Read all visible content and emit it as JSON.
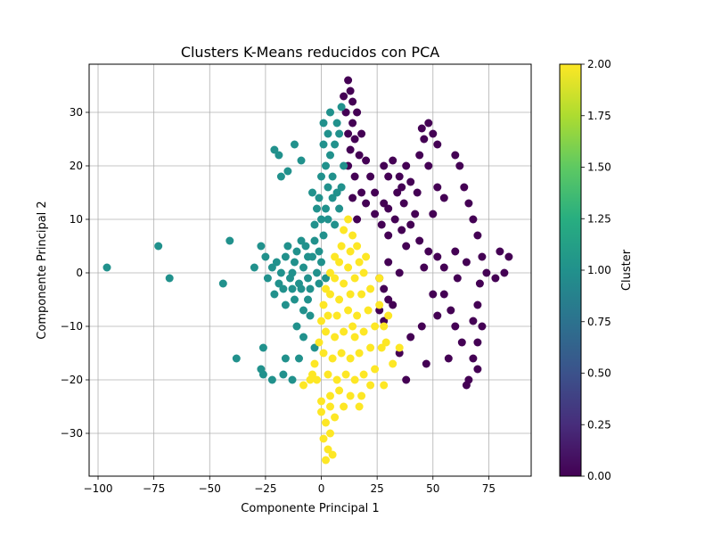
{
  "chart_data": {
    "type": "scatter",
    "title": "Clusters K-Means reducidos con PCA",
    "xlabel": "Componente Principal 1",
    "ylabel": "Componente Principal 2",
    "xlim": [
      -104,
      94
    ],
    "ylim": [
      -38,
      39
    ],
    "xticks": [
      -100,
      -75,
      -50,
      -25,
      0,
      25,
      50,
      75
    ],
    "xtick_labels": [
      "−100",
      "−75",
      "−50",
      "−25",
      "0",
      "25",
      "50",
      "75"
    ],
    "yticks": [
      -30,
      -20,
      -10,
      0,
      10,
      20,
      30
    ],
    "ytick_labels": [
      "−30",
      "−20",
      "−10",
      "0",
      "10",
      "20",
      "30"
    ],
    "grid": true,
    "colormap": "viridis",
    "colorbar": {
      "label": "Cluster",
      "range": [
        0,
        2
      ],
      "ticks": [
        0,
        0.25,
        0.5,
        0.75,
        1.0,
        1.25,
        1.5,
        1.75,
        2.0
      ],
      "tick_labels": [
        "0.00",
        "0.25",
        "0.50",
        "0.75",
        "1.00",
        "1.25",
        "1.50",
        "1.75",
        "2.00"
      ]
    },
    "series": [
      {
        "cluster": 0,
        "color": "#440154",
        "points": [
          [
            12,
            36
          ],
          [
            13,
            34
          ],
          [
            10,
            33
          ],
          [
            14,
            32
          ],
          [
            11,
            30
          ],
          [
            16,
            30
          ],
          [
            14,
            28
          ],
          [
            12,
            26
          ],
          [
            15,
            25
          ],
          [
            18,
            26
          ],
          [
            13,
            23
          ],
          [
            17,
            22
          ],
          [
            12,
            20
          ],
          [
            20,
            21
          ],
          [
            15,
            18
          ],
          [
            22,
            18
          ],
          [
            18,
            15
          ],
          [
            24,
            15
          ],
          [
            14,
            14
          ],
          [
            20,
            13
          ],
          [
            16,
            10
          ],
          [
            24,
            11
          ],
          [
            28,
            13
          ],
          [
            30,
            12
          ],
          [
            27,
            9
          ],
          [
            33,
            10
          ],
          [
            30,
            7
          ],
          [
            36,
            8
          ],
          [
            40,
            9
          ],
          [
            42,
            11
          ],
          [
            38,
            5
          ],
          [
            44,
            6
          ],
          [
            48,
            4
          ],
          [
            52,
            3
          ],
          [
            46,
            1
          ],
          [
            55,
            1
          ],
          [
            60,
            4
          ],
          [
            65,
            2
          ],
          [
            30,
            2
          ],
          [
            35,
            0
          ],
          [
            26,
            -1
          ],
          [
            28,
            -3
          ],
          [
            30,
            -5
          ],
          [
            26,
            -7
          ],
          [
            32,
            -6
          ],
          [
            28,
            -9
          ],
          [
            35,
            18
          ],
          [
            38,
            20
          ],
          [
            40,
            17
          ],
          [
            34,
            15
          ],
          [
            45,
            27
          ],
          [
            48,
            28
          ],
          [
            46,
            25
          ],
          [
            50,
            26
          ],
          [
            52,
            24
          ],
          [
            44,
            22
          ],
          [
            48,
            20
          ],
          [
            52,
            16
          ],
          [
            55,
            14
          ],
          [
            50,
            11
          ],
          [
            28,
            20
          ],
          [
            30,
            18
          ],
          [
            32,
            21
          ],
          [
            36,
            16
          ],
          [
            37,
            13
          ],
          [
            43,
            15
          ],
          [
            60,
            22
          ],
          [
            62,
            20
          ],
          [
            64,
            16
          ],
          [
            66,
            13
          ],
          [
            68,
            10
          ],
          [
            70,
            7
          ],
          [
            72,
            3
          ],
          [
            74,
            0
          ],
          [
            78,
            -1
          ],
          [
            80,
            4
          ],
          [
            82,
            0
          ],
          [
            84,
            3
          ],
          [
            71,
            -2
          ],
          [
            70,
            -6
          ],
          [
            68,
            -9
          ],
          [
            72,
            -10
          ],
          [
            70,
            -13
          ],
          [
            68,
            -16
          ],
          [
            70,
            -18
          ],
          [
            66,
            -20
          ],
          [
            65,
            -21
          ],
          [
            63,
            -13
          ],
          [
            60,
            -10
          ],
          [
            58,
            -7
          ],
          [
            55,
            -4
          ],
          [
            52,
            -8
          ],
          [
            50,
            -4
          ],
          [
            45,
            -10
          ],
          [
            40,
            -12
          ],
          [
            38,
            -20
          ],
          [
            35,
            -15
          ],
          [
            47,
            -17
          ],
          [
            57,
            -16
          ],
          [
            61,
            -1
          ]
        ]
      },
      {
        "cluster": 1,
        "color": "#21918c",
        "points": [
          [
            -96,
            1
          ],
          [
            -73,
            5
          ],
          [
            -68,
            -1
          ],
          [
            -44,
            -2
          ],
          [
            -41,
            6
          ],
          [
            -38,
            -16
          ],
          [
            -27,
            5
          ],
          [
            -27,
            -18
          ],
          [
            -26,
            -14
          ],
          [
            -22,
            -20
          ],
          [
            -30,
            1
          ],
          [
            -26,
            -19
          ],
          [
            -21,
            23
          ],
          [
            -19,
            22
          ],
          [
            -18,
            18
          ],
          [
            -15,
            19
          ],
          [
            -12,
            24
          ],
          [
            -9,
            21
          ],
          [
            -16,
            -16
          ],
          [
            -17,
            -19
          ],
          [
            -13,
            -20
          ],
          [
            -10,
            -16
          ],
          [
            -11,
            -10
          ],
          [
            -5,
            -8
          ],
          [
            -8,
            -12
          ],
          [
            -3,
            -14
          ],
          [
            -20,
            2
          ],
          [
            -18,
            0
          ],
          [
            -16,
            3
          ],
          [
            -14,
            -1
          ],
          [
            -12,
            2
          ],
          [
            -10,
            -2
          ],
          [
            -8,
            1
          ],
          [
            -6,
            -1
          ],
          [
            -4,
            3
          ],
          [
            -2,
            0
          ],
          [
            0,
            2
          ],
          [
            2,
            -1
          ],
          [
            -15,
            5
          ],
          [
            -11,
            4
          ],
          [
            -7,
            5
          ],
          [
            -3,
            6
          ],
          [
            -1,
            4
          ],
          [
            -19,
            -2
          ],
          [
            -17,
            -3
          ],
          [
            -13,
            -3
          ],
          [
            -9,
            -3
          ],
          [
            -5,
            -3
          ],
          [
            -1,
            -2
          ],
          [
            1,
            7
          ],
          [
            -3,
            9
          ],
          [
            0,
            10
          ],
          [
            2,
            12
          ],
          [
            -1,
            14
          ],
          [
            3,
            16
          ],
          [
            0,
            18
          ],
          [
            2,
            20
          ],
          [
            4,
            22
          ],
          [
            1,
            24
          ],
          [
            3,
            26
          ],
          [
            1,
            28
          ],
          [
            4,
            30
          ],
          [
            7,
            28
          ],
          [
            6,
            24
          ],
          [
            5,
            18
          ],
          [
            7,
            15
          ],
          [
            8,
            12
          ],
          [
            6,
            9
          ],
          [
            9,
            31
          ],
          [
            8,
            26
          ],
          [
            10,
            20
          ],
          [
            9,
            16
          ],
          [
            -4,
            15
          ],
          [
            -2,
            12
          ],
          [
            5,
            14
          ],
          [
            3,
            10
          ],
          [
            -6,
            3
          ],
          [
            -9,
            6
          ],
          [
            -13,
            0
          ],
          [
            -22,
            1
          ],
          [
            -24,
            -1
          ],
          [
            -21,
            -4
          ],
          [
            -16,
            -6
          ],
          [
            -12,
            -5
          ],
          [
            -25,
            3
          ],
          [
            -6,
            -5
          ],
          [
            -8,
            -7
          ]
        ]
      },
      {
        "cluster": 2,
        "color": "#fde725",
        "points": [
          [
            12,
            10
          ],
          [
            10,
            8
          ],
          [
            14,
            7
          ],
          [
            9,
            5
          ],
          [
            13,
            4
          ],
          [
            16,
            5
          ],
          [
            8,
            2
          ],
          [
            12,
            1
          ],
          [
            17,
            2
          ],
          [
            6,
            -1
          ],
          [
            10,
            -2
          ],
          [
            15,
            -1
          ],
          [
            19,
            0
          ],
          [
            4,
            -4
          ],
          [
            8,
            -5
          ],
          [
            13,
            -4
          ],
          [
            18,
            -4
          ],
          [
            22,
            -3
          ],
          [
            3,
            -8
          ],
          [
            7,
            -8
          ],
          [
            12,
            -7
          ],
          [
            16,
            -8
          ],
          [
            21,
            -7
          ],
          [
            26,
            -6
          ],
          [
            2,
            -11
          ],
          [
            6,
            -12
          ],
          [
            10,
            -11
          ],
          [
            15,
            -12
          ],
          [
            19,
            -11
          ],
          [
            24,
            -10
          ],
          [
            28,
            -10
          ],
          [
            1,
            -15
          ],
          [
            5,
            -16
          ],
          [
            9,
            -15
          ],
          [
            13,
            -16
          ],
          [
            17,
            -15
          ],
          [
            22,
            -14
          ],
          [
            27,
            -14
          ],
          [
            3,
            -19
          ],
          [
            7,
            -20
          ],
          [
            11,
            -19
          ],
          [
            15,
            -20
          ],
          [
            19,
            -19
          ],
          [
            24,
            -18
          ],
          [
            -2,
            -20
          ],
          [
            -5,
            -20
          ],
          [
            -8,
            -21
          ],
          [
            4,
            -23
          ],
          [
            8,
            -22
          ],
          [
            13,
            -23
          ],
          [
            18,
            -23
          ],
          [
            22,
            -21
          ],
          [
            28,
            -21
          ],
          [
            0,
            -26
          ],
          [
            2,
            -28
          ],
          [
            4,
            -30
          ],
          [
            1,
            -31
          ],
          [
            3,
            -33
          ],
          [
            5,
            -34
          ],
          [
            2,
            -35
          ],
          [
            6,
            -27
          ],
          [
            4,
            -25
          ],
          [
            -3,
            -17
          ],
          [
            -1,
            -13
          ],
          [
            0,
            -9
          ],
          [
            1,
            -6
          ],
          [
            2,
            -3
          ],
          [
            4,
            0
          ],
          [
            6,
            3
          ],
          [
            30,
            -8
          ],
          [
            29,
            -13
          ],
          [
            32,
            -17
          ],
          [
            35,
            -14
          ],
          [
            20,
            3
          ],
          [
            26,
            -1
          ],
          [
            17,
            -25
          ],
          [
            10,
            -25
          ],
          [
            0,
            -24
          ],
          [
            -4,
            -19
          ],
          [
            14,
            -10
          ]
        ]
      }
    ]
  }
}
